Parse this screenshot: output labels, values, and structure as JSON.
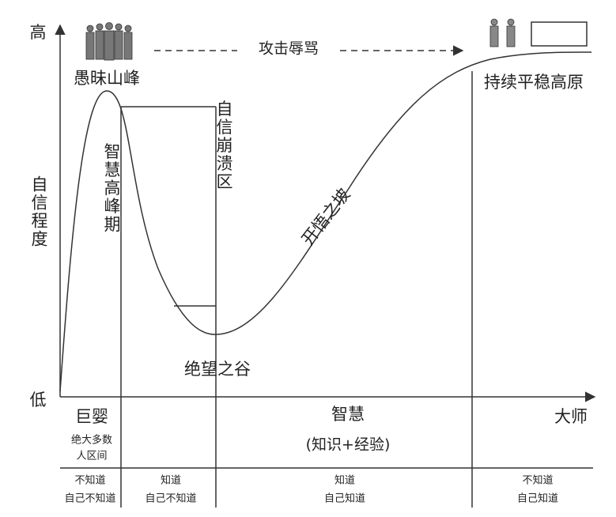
{
  "axis": {
    "y_top": "高",
    "y_bottom": "低",
    "y_label": "自信程度",
    "x_end": "大师"
  },
  "curve_labels": {
    "peak": "愚昧山峰",
    "attack": "攻击辱骂",
    "plateau": "持续平稳高原",
    "peak_period": "智慧高峰期",
    "collapse": "自信崩溃区",
    "slope": "开悟之坡",
    "valley": "绝望之谷"
  },
  "stages": [
    {
      "title": "巨婴",
      "note": [
        "绝大多数",
        "人区间"
      ]
    },
    {
      "title": "智慧",
      "note": [
        "(知识+经验)"
      ]
    }
  ],
  "bottom_row": [
    [
      "不知道",
      "自己不知道"
    ],
    [
      "知道",
      "自己不知道"
    ],
    [
      "知道",
      "自己知道"
    ],
    [
      "不知道",
      "自己知道"
    ]
  ]
}
